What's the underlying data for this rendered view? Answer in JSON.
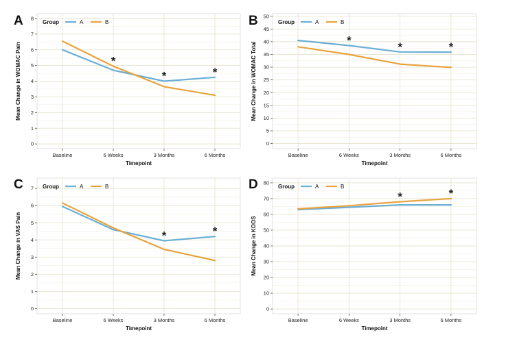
{
  "figure": {
    "legend": {
      "title": "Group",
      "entries": [
        {
          "label": "A",
          "color": "#6aaed6"
        },
        {
          "label": "B",
          "color": "#e8a33d"
        }
      ]
    }
  },
  "chart_data": [
    {
      "panel": "A",
      "type": "line",
      "categories": [
        "Baseline",
        "6 Weeks",
        "3 Months",
        "6 Months"
      ],
      "series": [
        {
          "name": "A",
          "color": "#6aaed6",
          "values": [
            6.0,
            4.7,
            4.0,
            4.25
          ]
        },
        {
          "name": "B",
          "color": "#e8a33d",
          "values": [
            6.55,
            4.95,
            3.65,
            3.1
          ]
        }
      ],
      "significance": [
        false,
        true,
        true,
        true
      ],
      "xlabel": "Timepoint",
      "ylabel": "Mean Change in WOMAC Pain",
      "ylim": [
        -0.3,
        8.3
      ],
      "yticks": [
        0,
        1,
        2,
        3,
        4,
        5,
        6,
        7,
        8
      ],
      "grid": true,
      "legend_position": "top-left"
    },
    {
      "panel": "B",
      "type": "line",
      "categories": [
        "Baseline",
        "6 Weeks",
        "3 Months",
        "6 Months"
      ],
      "series": [
        {
          "name": "A",
          "color": "#6aaed6",
          "values": [
            40.5,
            38.5,
            36.0,
            35.9
          ]
        },
        {
          "name": "B",
          "color": "#e8a33d",
          "values": [
            38.0,
            35.0,
            31.2,
            29.9
          ]
        }
      ],
      "significance": [
        false,
        true,
        true,
        true
      ],
      "xlabel": "Timepoint",
      "ylabel": "Mean Change in WOMAC Total",
      "ylim": [
        -2,
        51
      ],
      "yticks": [
        0,
        5,
        10,
        15,
        20,
        25,
        30,
        35,
        40,
        45,
        50
      ],
      "grid": true,
      "legend_position": "top-left"
    },
    {
      "panel": "C",
      "type": "line",
      "categories": [
        "Baseline",
        "6 Weeks",
        "3 Months",
        "6 Months"
      ],
      "series": [
        {
          "name": "A",
          "color": "#6aaed6",
          "values": [
            5.95,
            4.6,
            3.95,
            4.2
          ]
        },
        {
          "name": "B",
          "color": "#e8a33d",
          "values": [
            6.15,
            4.7,
            3.45,
            2.8
          ]
        }
      ],
      "significance": [
        false,
        false,
        true,
        true
      ],
      "xlabel": "Timepoint",
      "ylabel": "Mean Change in VAS Pain",
      "ylim": [
        -0.3,
        7.6
      ],
      "yticks": [
        0,
        1,
        2,
        3,
        4,
        5,
        6,
        7
      ],
      "grid": true,
      "legend_position": "top-left"
    },
    {
      "panel": "D",
      "type": "line",
      "categories": [
        "Baseline",
        "6 Weeks",
        "3 Months",
        "6 Months"
      ],
      "series": [
        {
          "name": "A",
          "color": "#6aaed6",
          "values": [
            63.0,
            64.5,
            66.0,
            66.0
          ]
        },
        {
          "name": "B",
          "color": "#e8a33d",
          "values": [
            63.5,
            65.5,
            68.0,
            70.0
          ]
        }
      ],
      "significance": [
        false,
        false,
        true,
        true
      ],
      "xlabel": "Timepoint",
      "ylabel": "Mean Change in KOOS",
      "ylim": [
        -3,
        83
      ],
      "yticks": [
        0,
        10,
        20,
        30,
        40,
        50,
        60,
        70,
        80
      ],
      "grid": true,
      "legend_position": "top-left"
    }
  ]
}
